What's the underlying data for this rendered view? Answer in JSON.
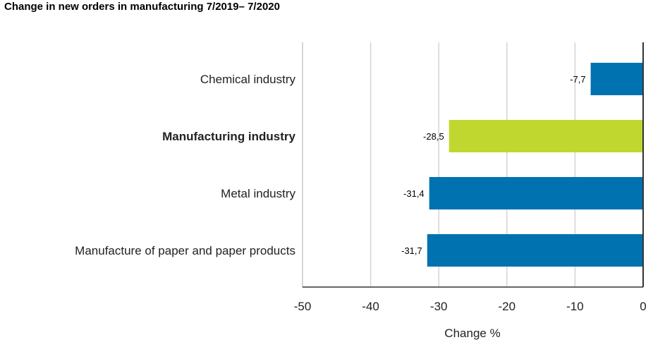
{
  "chart_data": {
    "type": "bar",
    "orientation": "horizontal",
    "title": "Change in new orders in manufacturing 7/2019– 7/2020",
    "xlabel": "Change %",
    "ylabel": "",
    "xlim": [
      -50,
      0
    ],
    "ticks": [
      -50,
      -40,
      -30,
      -20,
      -10,
      0
    ],
    "tick_labels": [
      "-50",
      "-40",
      "-30",
      "-20",
      "-10",
      "0"
    ],
    "grid": true,
    "categories": [
      "Chemical industry",
      "Manufacturing industry",
      "Metal industry",
      "Manufacture of paper and paper products"
    ],
    "values": [
      -7.7,
      -28.5,
      -31.4,
      -31.7
    ],
    "data_labels": [
      "-7,7",
      "-28,5",
      "-31,4",
      "-31,7"
    ],
    "highlight_category": "Manufacturing industry",
    "colors": {
      "default": "#0072b0",
      "highlight": "#c0d730",
      "grid": "#d4d4d4",
      "zero_line": "#333333"
    }
  }
}
